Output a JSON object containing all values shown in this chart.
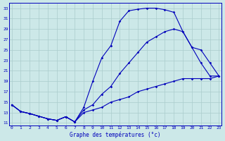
{
  "xlabel": "Graphe des températures (°c)",
  "bg_color": "#cce8e8",
  "line_color": "#0000bb",
  "grid_color": "#aacccc",
  "xticks": [
    0,
    1,
    2,
    3,
    4,
    5,
    6,
    7,
    8,
    9,
    10,
    11,
    12,
    13,
    14,
    15,
    16,
    17,
    18,
    19,
    20,
    21,
    22,
    23
  ],
  "yticks": [
    11,
    13,
    15,
    17,
    19,
    21,
    23,
    25,
    27,
    29,
    31,
    33
  ],
  "xlim": [
    -0.3,
    23.3
  ],
  "ylim": [
    10.5,
    34.0
  ],
  "line1_x": [
    0,
    1,
    2,
    3,
    4,
    5,
    6,
    7,
    8,
    9,
    10,
    11,
    12,
    13,
    14,
    15,
    16,
    17,
    18,
    19,
    20,
    21,
    22,
    23
  ],
  "line1_y": [
    14.5,
    13.2,
    12.8,
    12.3,
    11.8,
    11.5,
    12.2,
    11.2,
    14.0,
    19.0,
    23.5,
    25.8,
    30.5,
    32.5,
    32.8,
    33.0,
    33.0,
    32.7,
    32.2,
    28.5,
    25.5,
    22.5,
    20.0,
    20.0
  ],
  "line2_x": [
    0,
    1,
    2,
    3,
    4,
    5,
    6,
    7,
    8,
    9,
    10,
    11,
    12,
    13,
    14,
    15,
    16,
    17,
    18,
    19,
    20,
    21,
    22,
    23
  ],
  "line2_y": [
    14.5,
    13.2,
    12.8,
    12.3,
    11.8,
    11.5,
    12.2,
    11.2,
    13.5,
    14.5,
    16.5,
    18.0,
    20.5,
    22.5,
    24.5,
    26.5,
    27.5,
    28.5,
    29.0,
    28.5,
    25.5,
    25.0,
    22.5,
    20.0
  ],
  "line3_x": [
    0,
    1,
    2,
    3,
    4,
    5,
    6,
    7,
    8,
    9,
    10,
    11,
    12,
    13,
    14,
    15,
    16,
    17,
    18,
    19,
    20,
    21,
    22,
    23
  ],
  "line3_y": [
    14.5,
    13.2,
    12.8,
    12.3,
    11.8,
    11.5,
    12.2,
    11.2,
    13.0,
    13.5,
    14.0,
    15.0,
    15.5,
    16.0,
    17.0,
    17.5,
    18.0,
    18.5,
    19.0,
    19.5,
    19.5,
    19.5,
    19.5,
    20.0
  ],
  "tick_fontsize": 4.5,
  "xlabel_fontsize": 5.5
}
